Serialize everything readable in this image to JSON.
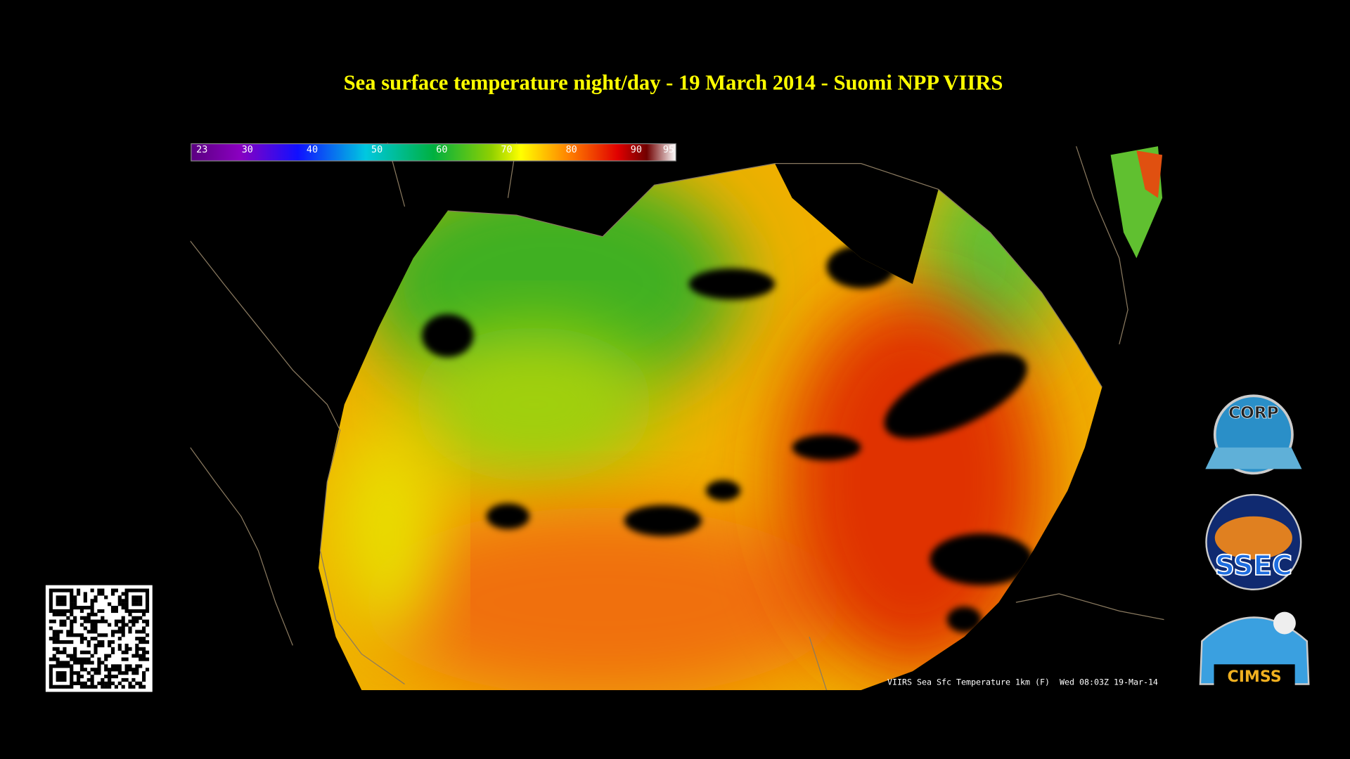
{
  "title": "Sea surface temperature night/day - 19 March 2014 - Suomi NPP VIIRS",
  "colorbar": {
    "range": [
      23,
      95
    ],
    "ticks": [
      23,
      30,
      40,
      50,
      60,
      70,
      80,
      90,
      95
    ]
  },
  "caption": "VIIRS Sea Sfc Temperature 1km (F)  Wed 08:03Z 19-Mar-14",
  "logos": [
    "CORP",
    "SSEC",
    "CIMSS"
  ]
}
